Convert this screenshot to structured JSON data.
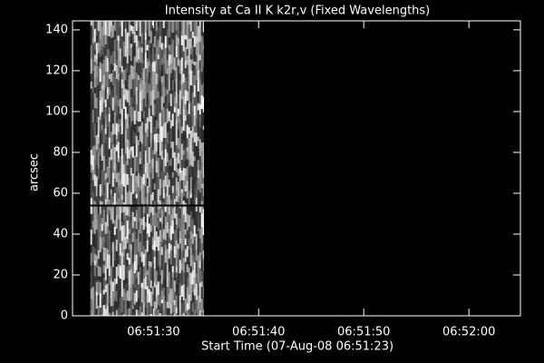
{
  "chart_data": {
    "type": "image",
    "title": "Intensity at Ca II K k2r,v (Fixed Wavelengths)",
    "xlabel": "Start Time (07-Aug-08 06:51:23)",
    "ylabel": "arcsec",
    "xlim": [
      22.3,
      64.9
    ],
    "xticks": [
      {
        "value": 30,
        "label": "06:51:30"
      },
      {
        "value": 40,
        "label": "06:51:40"
      },
      {
        "value": 50,
        "label": "06:51:50"
      },
      {
        "value": 60,
        "label": "06:52:00"
      }
    ],
    "ylim": [
      0,
      144.4
    ],
    "yticks": [
      0,
      20,
      40,
      60,
      80,
      100,
      120,
      140
    ],
    "image_x": [
      24.0,
      34.8
    ],
    "image_y": [
      0,
      144.4
    ],
    "hline": 54
  }
}
